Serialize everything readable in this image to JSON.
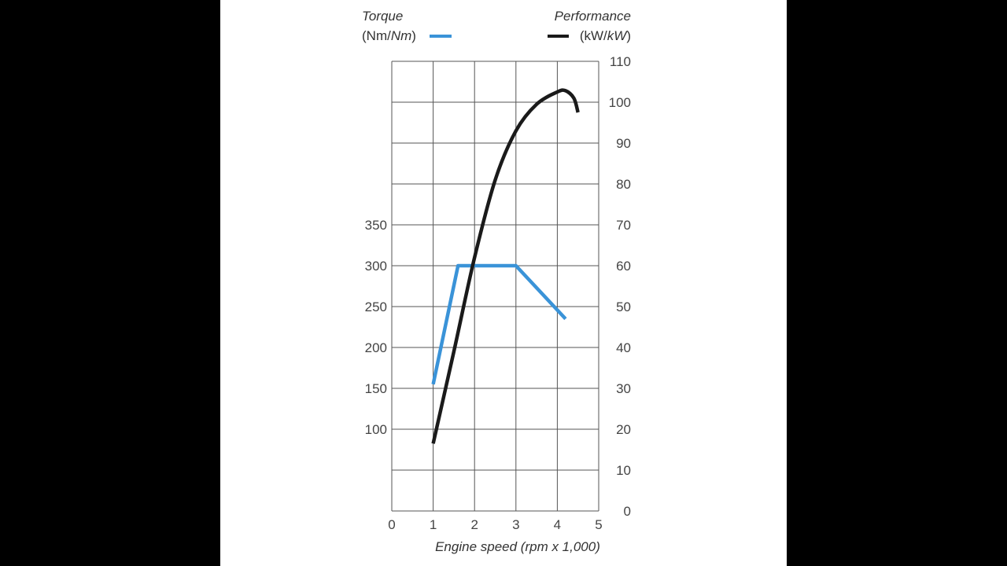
{
  "chart_data": {
    "type": "line",
    "xlabel": "Engine speed (rpm x 1,000)",
    "x_ticks": [
      "0",
      "1",
      "2",
      "3",
      "4",
      "5"
    ],
    "xlim": [
      0,
      5
    ],
    "grid": true,
    "left_axis": {
      "title": "Torque",
      "unit_upright": "(Nm/",
      "unit_italic": "Nm",
      "unit_close": ")",
      "ticks": [
        "100",
        "150",
        "200",
        "250",
        "300",
        "350"
      ],
      "ylim": [
        0,
        550
      ]
    },
    "right_axis": {
      "title": "Performance",
      "unit_upright": "(kW/",
      "unit_italic": "kW",
      "unit_close": ")",
      "ticks": [
        "0",
        "10",
        "20",
        "30",
        "40",
        "50",
        "60",
        "70",
        "80",
        "90",
        "100",
        "110"
      ],
      "ylim": [
        0,
        110
      ]
    },
    "series": [
      {
        "axis": "left",
        "color": "#3a93d8",
        "x": [
          1.0,
          1.6,
          3.0,
          4.2
        ],
        "y": [
          155,
          300,
          300,
          235
        ]
      },
      {
        "axis": "right",
        "color": "#1a1a1a",
        "x": [
          1.0,
          1.5,
          2.0,
          2.5,
          3.0,
          3.5,
          4.0,
          4.2,
          4.4,
          4.5
        ],
        "y": [
          16.5,
          39,
          62,
          81,
          93,
          99.5,
          102.5,
          102.8,
          101,
          97.5
        ]
      }
    ]
  }
}
